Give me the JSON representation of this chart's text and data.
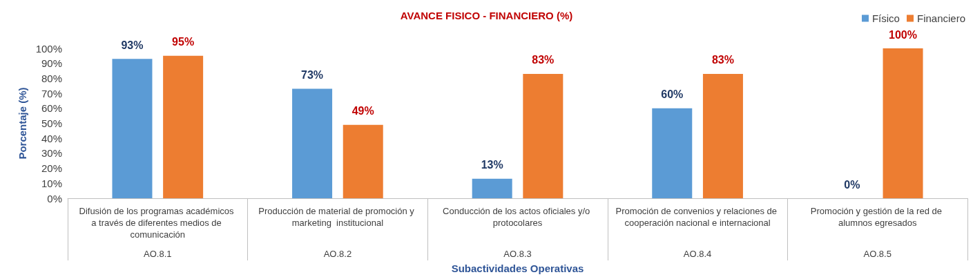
{
  "chart_data": {
    "type": "bar",
    "title": "AVANCE FISICO - FINANCIERO (%)",
    "xlabel": "Subactividades Operativas",
    "ylabel": "Porcentaje (%)",
    "categories": [
      "Difusión de los programas académicos a través de diferentes medios de comunicación",
      "Producción de material de promoción y marketing  institucional",
      "Conducción de los actos oficiales y/o protocolares",
      "Promoción de convenios y relaciones de cooperación nacional e internacional",
      "Promoción y gestión de la red de alumnos egresados"
    ],
    "series": [
      {
        "name": "Físico",
        "color": "#5b9bd5",
        "values": [
          93,
          73,
          13,
          60,
          0
        ]
      },
      {
        "name": "Financiero",
        "color": "#ed7d31",
        "values": [
          95,
          49,
          83,
          83,
          100
        ]
      }
    ],
    "value_labels": [
      [
        "93%",
        "73%",
        "13%",
        "60%",
        "0%"
      ],
      [
        "95%",
        "49%",
        "83%",
        "83%",
        "100%"
      ]
    ],
    "annotations": [
      "AO.8.1",
      "AO.8.2",
      "AO.8.3",
      "AO.8.4",
      "AO.8.5"
    ],
    "ylim": [
      0,
      100
    ],
    "yticks": [
      {
        "value": 0,
        "label": "0%"
      },
      {
        "value": 10,
        "label": "10%"
      },
      {
        "value": 20,
        "label": "20%"
      },
      {
        "value": 30,
        "label": "30%"
      },
      {
        "value": 40,
        "label": "40%"
      },
      {
        "value": 50,
        "label": "50%"
      },
      {
        "value": 60,
        "label": "60%"
      },
      {
        "value": 70,
        "label": "70%"
      },
      {
        "value": 80,
        "label": "80%"
      },
      {
        "value": 90,
        "label": "90%"
      },
      {
        "value": 100,
        "label": "100%"
      }
    ],
    "grid": false,
    "legend": "top right"
  }
}
